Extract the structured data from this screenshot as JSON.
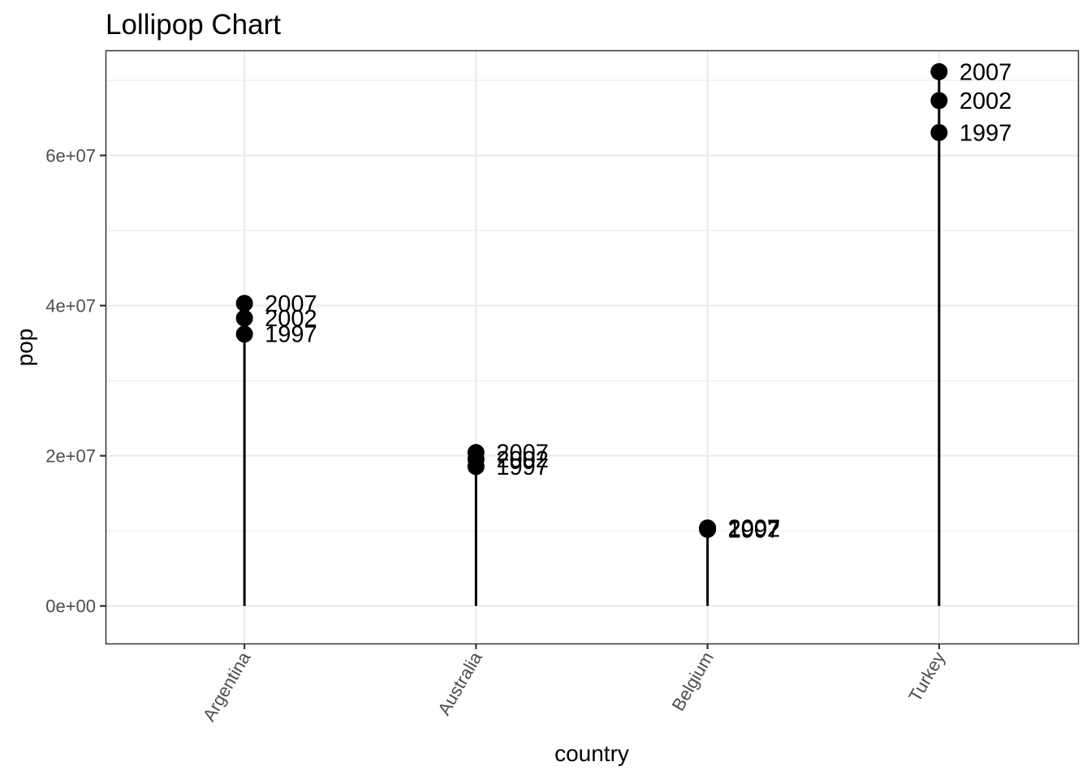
{
  "chart_data": {
    "type": "lollipop",
    "title": "Lollipop Chart",
    "xlabel": "country",
    "ylabel": "pop",
    "categories": [
      "Argentina",
      "Australia",
      "Belgium",
      "Turkey"
    ],
    "ylim": [
      -5000000,
      74000000
    ],
    "yticks": [
      0,
      20000000,
      40000000,
      60000000
    ],
    "ytick_labels": [
      "0e+00",
      "2e+07",
      "4e+07",
      "6e+07"
    ],
    "grid": true,
    "points": [
      {
        "country": "Argentina",
        "year": "1997",
        "pop": 36203463
      },
      {
        "country": "Argentina",
        "year": "2002",
        "pop": 38331121
      },
      {
        "country": "Argentina",
        "year": "2007",
        "pop": 40301927
      },
      {
        "country": "Australia",
        "year": "1997",
        "pop": 18565243
      },
      {
        "country": "Australia",
        "year": "2002",
        "pop": 19546792
      },
      {
        "country": "Australia",
        "year": "2007",
        "pop": 20434176
      },
      {
        "country": "Belgium",
        "year": "1997",
        "pop": 10199787
      },
      {
        "country": "Belgium",
        "year": "2002",
        "pop": 10311970
      },
      {
        "country": "Belgium",
        "year": "2007",
        "pop": 10392226
      },
      {
        "country": "Turkey",
        "year": "1997",
        "pop": 63047647
      },
      {
        "country": "Turkey",
        "year": "2002",
        "pop": 67308928
      },
      {
        "country": "Turkey",
        "year": "2007",
        "pop": 71158647
      }
    ]
  }
}
